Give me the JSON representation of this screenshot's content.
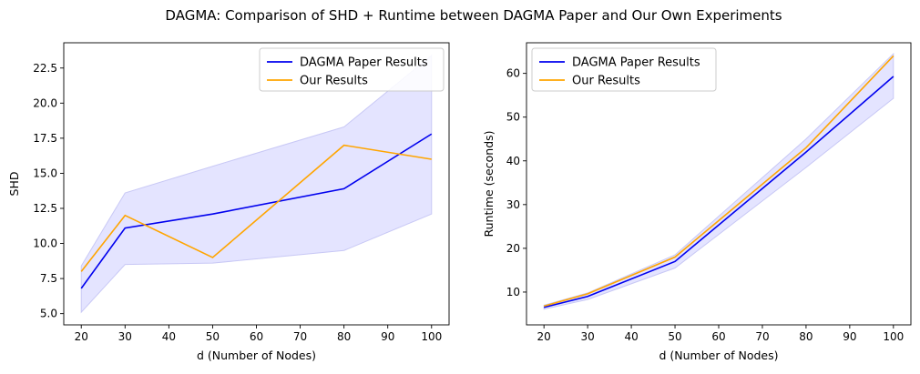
{
  "figure": {
    "title": "DAGMA: Comparison of SHD + Runtime between DAGMA Paper and Our Own Experiments"
  },
  "colors": {
    "paper": "#0000ee",
    "ours": "#ffa500",
    "band_fill": "#e1e1ff",
    "band_edge": "#c8c8f5"
  },
  "chart_data": [
    {
      "type": "line",
      "xlabel": "d (Number of Nodes)",
      "ylabel": "SHD",
      "xlim": [
        16,
        104
      ],
      "ylim": [
        4.2,
        24.3
      ],
      "xticks": [
        20,
        30,
        40,
        50,
        60,
        70,
        80,
        90,
        100
      ],
      "yticks": [
        5.0,
        7.5,
        10.0,
        12.5,
        15.0,
        17.5,
        20.0,
        22.5
      ],
      "ytick_labels": [
        "5.0",
        "7.5",
        "10.0",
        "12.5",
        "15.0",
        "17.5",
        "20.0",
        "22.5"
      ],
      "legend_position": "top-right",
      "x": [
        20,
        30,
        50,
        80,
        100
      ],
      "series": [
        {
          "name": "DAGMA Paper Results",
          "color_key": "paper",
          "values": [
            6.8,
            11.1,
            12.1,
            13.9,
            17.8
          ],
          "lower": [
            5.1,
            8.5,
            8.6,
            9.5,
            12.1
          ],
          "upper": [
            8.4,
            13.6,
            15.5,
            18.3,
            23.4
          ]
        },
        {
          "name": "Our Results",
          "color_key": "ours",
          "values": [
            8.0,
            12.0,
            9.0,
            17.0,
            16.0
          ]
        }
      ]
    },
    {
      "type": "line",
      "xlabel": "d (Number of Nodes)",
      "ylabel": "Runtime (seconds)",
      "xlim": [
        16,
        104
      ],
      "ylim": [
        2.5,
        67
      ],
      "xticks": [
        20,
        30,
        40,
        50,
        60,
        70,
        80,
        90,
        100
      ],
      "yticks": [
        10,
        20,
        30,
        40,
        50,
        60
      ],
      "ytick_labels": [
        "10",
        "20",
        "30",
        "40",
        "50",
        "60"
      ],
      "legend_position": "top-left",
      "x": [
        20,
        30,
        50,
        80,
        100
      ],
      "series": [
        {
          "name": "DAGMA Paper Results",
          "color_key": "paper",
          "values": [
            6.5,
            9.0,
            17.0,
            42.0,
            59.3
          ],
          "lower": [
            6.1,
            8.3,
            15.5,
            38.5,
            54.3
          ],
          "upper": [
            7.0,
            9.8,
            18.5,
            45.0,
            64.5
          ]
        },
        {
          "name": "Our Results",
          "color_key": "ours",
          "values": [
            6.8,
            9.6,
            18.0,
            43.0,
            64.0
          ]
        }
      ]
    }
  ]
}
